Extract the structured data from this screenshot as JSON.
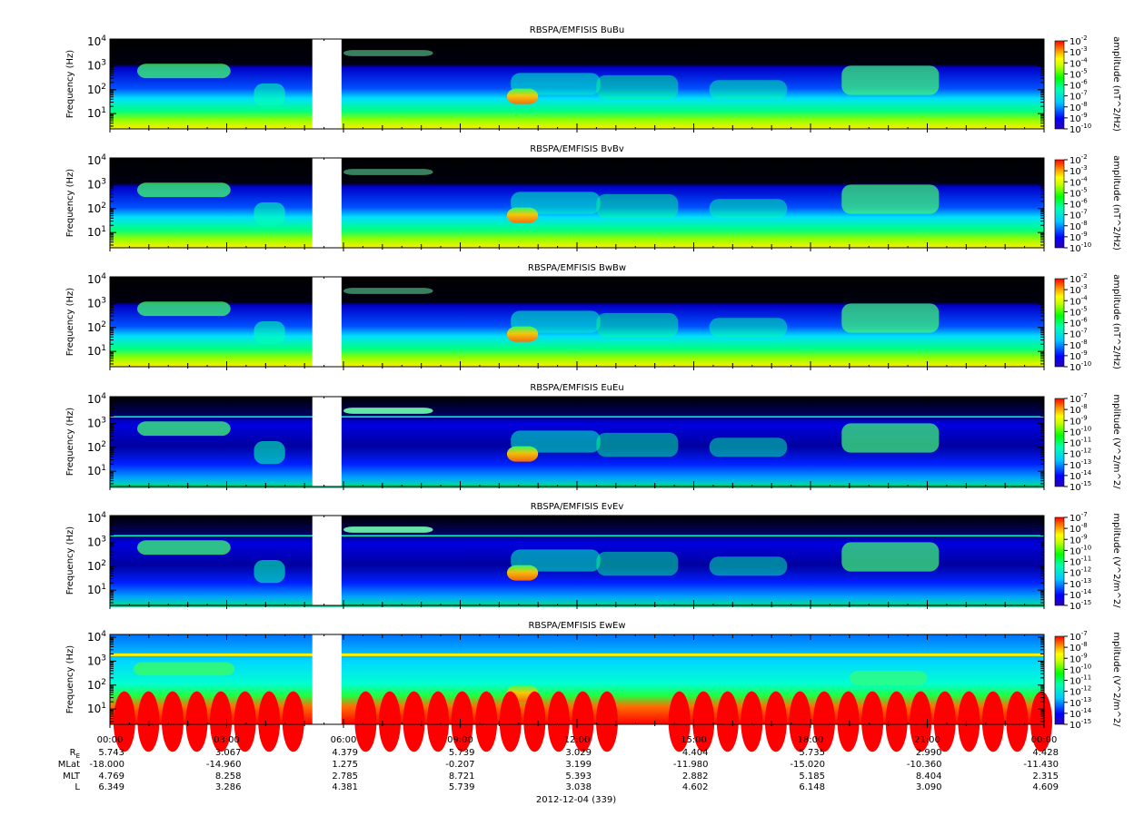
{
  "chart_data": [
    {
      "type": "heatmap",
      "title": "RBSPA/EMFISIS  BuBu",
      "ylabel": "Frequency (Hz)",
      "yscale": "log",
      "ylim": [
        2.3,
        13000
      ],
      "y_ticks": [
        {
          "base": "10",
          "exp": "1"
        },
        {
          "base": "10",
          "exp": "2"
        },
        {
          "base": "10",
          "exp": "3"
        },
        {
          "base": "10",
          "exp": "4"
        }
      ],
      "colorbar": {
        "label": "amplitude (nT^2/Hz)",
        "scale": "log",
        "range": [
          1e-10,
          0.01
        ],
        "ticks": [
          {
            "base": "10",
            "exp": "-2"
          },
          {
            "base": "10",
            "exp": "-3"
          },
          {
            "base": "10",
            "exp": "-4"
          },
          {
            "base": "10",
            "exp": "-5"
          },
          {
            "base": "10",
            "exp": "-6"
          },
          {
            "base": "10",
            "exp": "-7"
          },
          {
            "base": "10",
            "exp": "-8"
          },
          {
            "base": "10",
            "exp": "-9"
          },
          {
            "base": "10",
            "exp": "-10"
          }
        ]
      },
      "data_gap_hours": [
        5.2,
        5.95
      ]
    },
    {
      "type": "heatmap",
      "title": "RBSPA/EMFISIS  BvBv",
      "ylabel": "Frequency (Hz)",
      "yscale": "log",
      "ylim": [
        2.3,
        13000
      ],
      "y_ticks": [
        {
          "base": "10",
          "exp": "1"
        },
        {
          "base": "10",
          "exp": "2"
        },
        {
          "base": "10",
          "exp": "3"
        },
        {
          "base": "10",
          "exp": "4"
        }
      ],
      "colorbar": {
        "label": "amplitude (nT^2/Hz)",
        "scale": "log",
        "range": [
          1e-10,
          0.01
        ],
        "ticks": [
          {
            "base": "10",
            "exp": "-2"
          },
          {
            "base": "10",
            "exp": "-3"
          },
          {
            "base": "10",
            "exp": "-4"
          },
          {
            "base": "10",
            "exp": "-5"
          },
          {
            "base": "10",
            "exp": "-6"
          },
          {
            "base": "10",
            "exp": "-7"
          },
          {
            "base": "10",
            "exp": "-8"
          },
          {
            "base": "10",
            "exp": "-9"
          },
          {
            "base": "10",
            "exp": "-10"
          }
        ]
      },
      "data_gap_hours": [
        5.2,
        5.95
      ]
    },
    {
      "type": "heatmap",
      "title": "RBSPA/EMFISIS  BwBw",
      "ylabel": "Frequency (Hz)",
      "yscale": "log",
      "ylim": [
        2.3,
        13000
      ],
      "y_ticks": [
        {
          "base": "10",
          "exp": "1"
        },
        {
          "base": "10",
          "exp": "2"
        },
        {
          "base": "10",
          "exp": "3"
        },
        {
          "base": "10",
          "exp": "4"
        }
      ],
      "colorbar": {
        "label": "amplitude (nT^2/Hz)",
        "scale": "log",
        "range": [
          1e-10,
          0.01
        ],
        "ticks": [
          {
            "base": "10",
            "exp": "-2"
          },
          {
            "base": "10",
            "exp": "-3"
          },
          {
            "base": "10",
            "exp": "-4"
          },
          {
            "base": "10",
            "exp": "-5"
          },
          {
            "base": "10",
            "exp": "-6"
          },
          {
            "base": "10",
            "exp": "-7"
          },
          {
            "base": "10",
            "exp": "-8"
          },
          {
            "base": "10",
            "exp": "-9"
          },
          {
            "base": "10",
            "exp": "-10"
          }
        ]
      },
      "data_gap_hours": [
        5.2,
        5.95
      ]
    },
    {
      "type": "heatmap",
      "title": "RBSPA/EMFISIS  EuEu",
      "ylabel": "Frequency (Hz)",
      "yscale": "log",
      "ylim": [
        2.3,
        13000
      ],
      "y_ticks": [
        {
          "base": "10",
          "exp": "1"
        },
        {
          "base": "10",
          "exp": "2"
        },
        {
          "base": "10",
          "exp": "3"
        },
        {
          "base": "10",
          "exp": "4"
        }
      ],
      "colorbar": {
        "label": "mplitude (V^2/m^2/",
        "scale": "log",
        "range": [
          1e-15,
          1e-07
        ],
        "ticks": [
          {
            "base": "10",
            "exp": "-7"
          },
          {
            "base": "10",
            "exp": "-8"
          },
          {
            "base": "10",
            "exp": "-9"
          },
          {
            "base": "10",
            "exp": "-10"
          },
          {
            "base": "10",
            "exp": "-11"
          },
          {
            "base": "10",
            "exp": "-12"
          },
          {
            "base": "10",
            "exp": "-13"
          },
          {
            "base": "10",
            "exp": "-14"
          },
          {
            "base": "10",
            "exp": "-15"
          }
        ]
      },
      "data_gap_hours": [
        5.2,
        5.95
      ]
    },
    {
      "type": "heatmap",
      "title": "RBSPA/EMFISIS  EvEv",
      "ylabel": "Frequency (Hz)",
      "yscale": "log",
      "ylim": [
        2.3,
        13000
      ],
      "y_ticks": [
        {
          "base": "10",
          "exp": "1"
        },
        {
          "base": "10",
          "exp": "2"
        },
        {
          "base": "10",
          "exp": "3"
        },
        {
          "base": "10",
          "exp": "4"
        }
      ],
      "colorbar": {
        "label": "mplitude (V^2/m^2/",
        "scale": "log",
        "range": [
          1e-15,
          1e-07
        ],
        "ticks": [
          {
            "base": "10",
            "exp": "-7"
          },
          {
            "base": "10",
            "exp": "-8"
          },
          {
            "base": "10",
            "exp": "-9"
          },
          {
            "base": "10",
            "exp": "-10"
          },
          {
            "base": "10",
            "exp": "-11"
          },
          {
            "base": "10",
            "exp": "-12"
          },
          {
            "base": "10",
            "exp": "-13"
          },
          {
            "base": "10",
            "exp": "-14"
          },
          {
            "base": "10",
            "exp": "-15"
          }
        ]
      },
      "data_gap_hours": [
        5.2,
        5.95
      ]
    },
    {
      "type": "heatmap",
      "title": "RBSPA/EMFISIS  EwEw",
      "ylabel": "Frequency (Hz)",
      "yscale": "log",
      "ylim": [
        2.3,
        13000
      ],
      "y_ticks": [
        {
          "base": "10",
          "exp": "1"
        },
        {
          "base": "10",
          "exp": "2"
        },
        {
          "base": "10",
          "exp": "3"
        },
        {
          "base": "10",
          "exp": "4"
        }
      ],
      "colorbar": {
        "label": "mplitude (V^2/m^2/",
        "scale": "log",
        "range": [
          1e-15,
          1e-07
        ],
        "ticks": [
          {
            "base": "10",
            "exp": "-7"
          },
          {
            "base": "10",
            "exp": "-8"
          },
          {
            "base": "10",
            "exp": "-9"
          },
          {
            "base": "10",
            "exp": "-10"
          },
          {
            "base": "10",
            "exp": "-11"
          },
          {
            "base": "10",
            "exp": "-12"
          },
          {
            "base": "10",
            "exp": "-13"
          },
          {
            "base": "10",
            "exp": "-14"
          },
          {
            "base": "10",
            "exp": "-15"
          }
        ]
      },
      "data_gap_hours": [
        5.2,
        5.95
      ]
    }
  ],
  "x_axis": {
    "range_hours": [
      0,
      24
    ],
    "ticks": [
      {
        "hour": 0,
        "label": "00:00"
      },
      {
        "hour": 3,
        "label": "03:00"
      },
      {
        "hour": 6,
        "label": "06:00"
      },
      {
        "hour": 9,
        "label": "09:00"
      },
      {
        "hour": 12,
        "label": "12:00"
      },
      {
        "hour": 15,
        "label": "15:00"
      },
      {
        "hour": 18,
        "label": "18:00"
      },
      {
        "hour": 21,
        "label": "21:00"
      },
      {
        "hour": 24,
        "label": "00:00"
      }
    ],
    "date_label": "2012-12-04 (339)"
  },
  "ephemeris": [
    {
      "label": "R",
      "sub": "E",
      "values": [
        "5.743",
        "3.067",
        "4.379",
        "5.739",
        "3.029",
        "4.404",
        "5.735",
        "2.990",
        "4.428"
      ]
    },
    {
      "label": "MLat",
      "sub": "",
      "values": [
        "-18.000",
        "-14.960",
        "1.275",
        "-0.207",
        "3.199",
        "-11.980",
        "-15.020",
        "-10.360",
        "-11.430"
      ]
    },
    {
      "label": "MLT",
      "sub": "",
      "values": [
        "4.769",
        "8.258",
        "2.785",
        "8.721",
        "5.393",
        "2.882",
        "5.185",
        "8.404",
        "2.315"
      ]
    },
    {
      "label": "L",
      "sub": "",
      "values": [
        "6.349",
        "3.286",
        "4.381",
        "5.739",
        "3.038",
        "4.602",
        "6.148",
        "3.090",
        "4.609"
      ]
    }
  ]
}
